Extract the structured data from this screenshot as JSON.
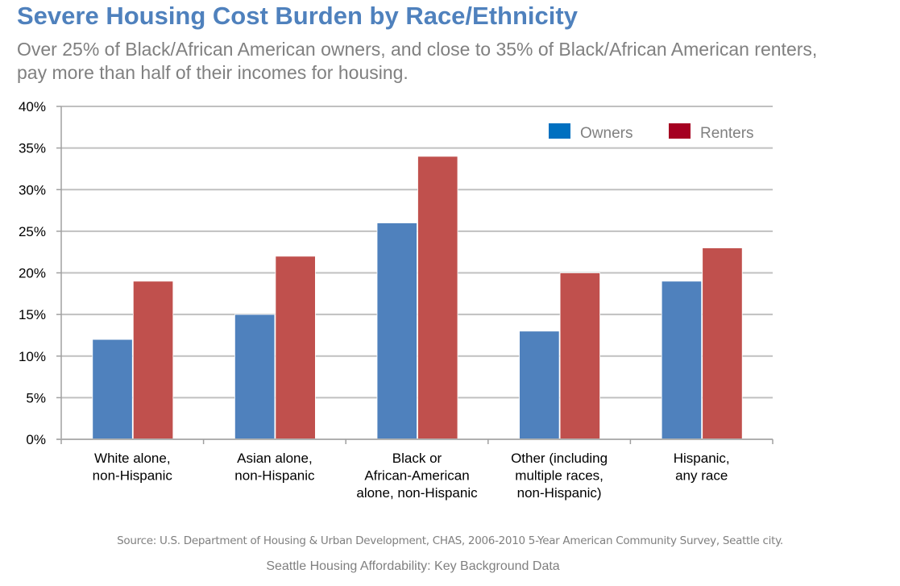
{
  "title": "Severe Housing Cost Burden by Race/Ethnicity",
  "subtitle": "Over 25% of Black/African American owners, and close to 35% of Black/African American renters, pay more than half of their incomes for housing.",
  "source": "Source: U.S. Department of Housing & Urban Development, CHAS, 2006-2010 5-Year American Community Survey, Seattle city.",
  "footer": "Seattle Housing Affordability: Key Background Data",
  "colors": {
    "title": "#4f81bd",
    "owners_bar": "#4f81bd",
    "renters_bar": "#c0504d",
    "owners_legend": "#0070c0",
    "renters_legend": "#a50021",
    "grid": "#c0c0c0"
  },
  "chart_data": {
    "type": "bar",
    "title": "Severe Housing Cost Burden by Race/Ethnicity",
    "xlabel": "",
    "ylabel": "",
    "categories": [
      [
        "White alone,",
        "non-Hispanic"
      ],
      [
        "Asian alone,",
        "non-Hispanic"
      ],
      [
        "Black or",
        "African-American",
        "alone, non-Hispanic"
      ],
      [
        "Other (including",
        "multiple races,",
        "non-Hispanic)"
      ],
      [
        "Hispanic,",
        "any race"
      ]
    ],
    "series": [
      {
        "name": "Owners",
        "values": [
          12,
          15,
          26,
          13,
          19
        ]
      },
      {
        "name": "Renters",
        "values": [
          19,
          22,
          34,
          20,
          23
        ]
      }
    ],
    "ylim": [
      0,
      40
    ],
    "yticks": [
      0,
      5,
      10,
      15,
      20,
      25,
      30,
      35,
      40
    ],
    "ytick_suffix": "%",
    "grid": true,
    "legend": {
      "placement": "top-right",
      "entries": [
        "Owners",
        "Renters"
      ]
    }
  }
}
